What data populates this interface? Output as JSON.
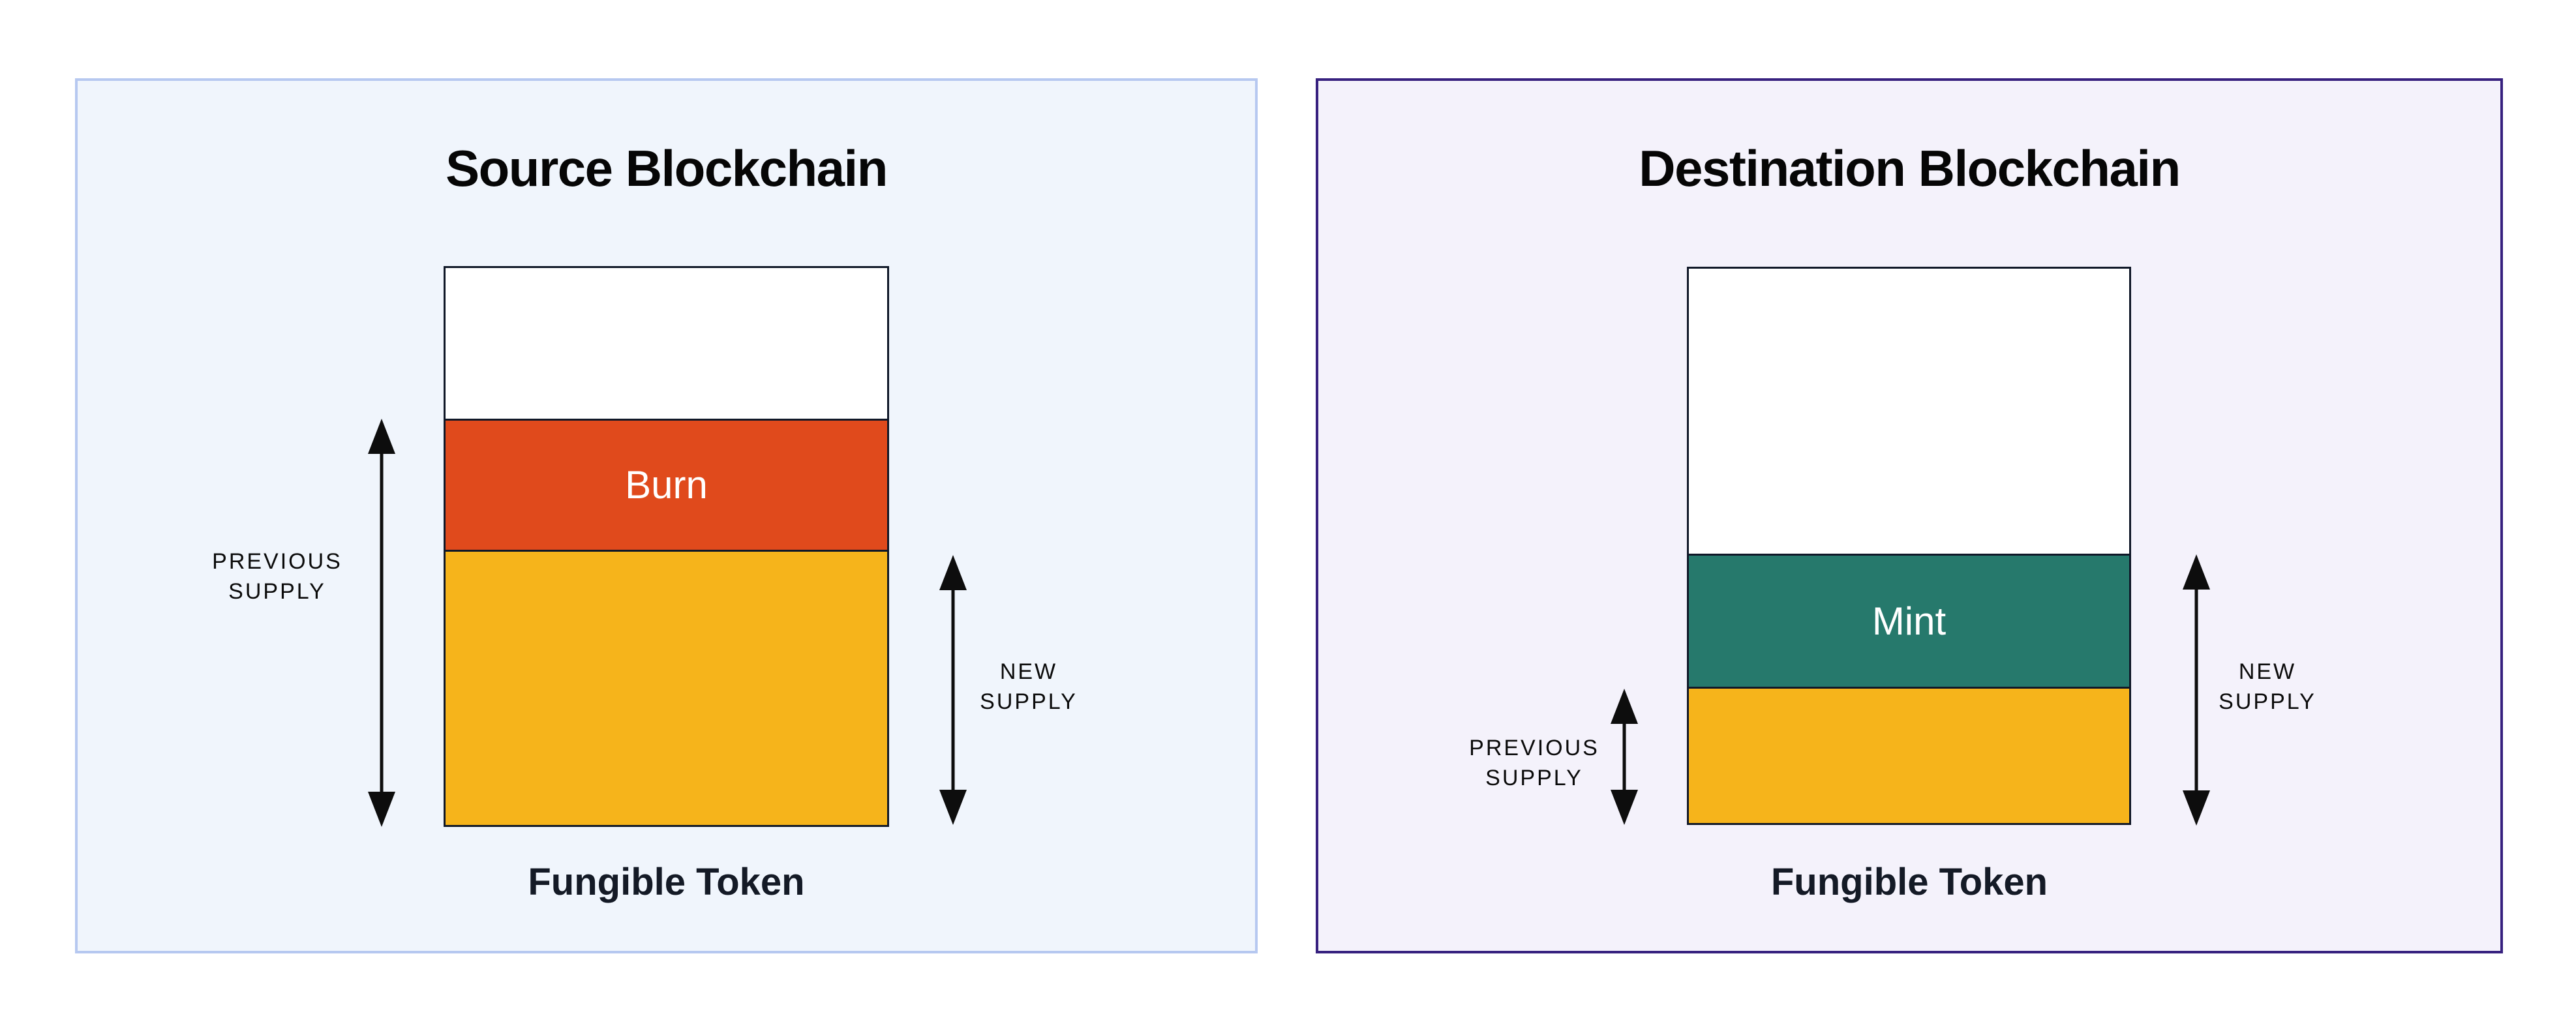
{
  "page": {
    "background": "#ffffff"
  },
  "diagram": {
    "panels": [
      {
        "title": "Source Blockchain",
        "caption": "Fungible Token",
        "panel_background": "#f0f5fc",
        "panel_border": "#b6c8f0",
        "bar_border": "#101828",
        "arrow_color": "#0d0d0d",
        "segments": [
          {
            "name": "unfilled",
            "color": "#ffffff",
            "label": ""
          },
          {
            "name": "burn",
            "color": "#e04a1c",
            "label": "Burn",
            "label_color": "#ffffff"
          },
          {
            "name": "remaining-supply",
            "color": "#f6b41b",
            "label": ""
          }
        ],
        "left_arrow_label": "PREVIOUS\nSUPPLY",
        "right_arrow_label": "NEW\nSUPPLY"
      },
      {
        "title": "Destination Blockchain",
        "caption": "Fungible Token",
        "panel_background": "#f4f2fb",
        "panel_border": "#37217f",
        "bar_border": "#101828",
        "arrow_color": "#0d0d0d",
        "segments": [
          {
            "name": "unfilled",
            "color": "#ffffff",
            "label": ""
          },
          {
            "name": "mint",
            "color": "#26796c",
            "label": "Mint",
            "label_color": "#ffffff"
          },
          {
            "name": "previous-supply",
            "color": "#f6b41b",
            "label": ""
          }
        ],
        "left_arrow_label": "PREVIOUS\nSUPPLY",
        "right_arrow_label": "NEW\nSUPPLY"
      }
    ]
  }
}
